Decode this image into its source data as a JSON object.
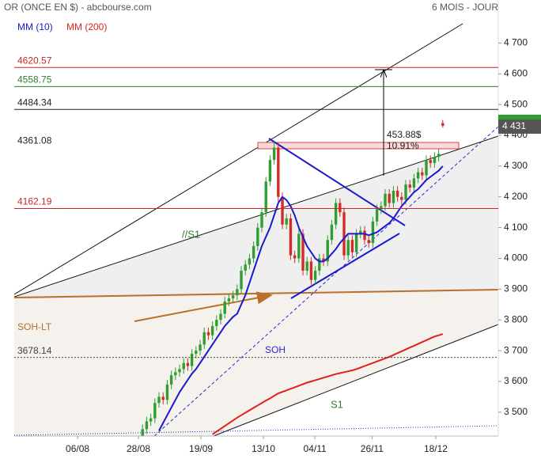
{
  "chart_data": {
    "type": "candlestick",
    "title": "OR (ONCE EN $) - abcbourse.com",
    "subtitle": "6 MOIS - JOUR",
    "ylim": [
      3425,
      4840
    ],
    "yticks": [
      {
        "value": 3500,
        "label": "3 500"
      },
      {
        "value": 3600,
        "label": "3 600"
      },
      {
        "value": 3700,
        "label": "3 700"
      },
      {
        "value": 3800,
        "label": "3 800"
      },
      {
        "value": 3900,
        "label": "3 900"
      },
      {
        "value": 4000,
        "label": "4 000"
      },
      {
        "value": 4100,
        "label": "4 100"
      },
      {
        "value": 4200,
        "label": "4 200"
      },
      {
        "value": 4300,
        "label": "4 300"
      },
      {
        "value": 4400,
        "label": "4 400"
      },
      {
        "value": 4500,
        "label": "4 500"
      },
      {
        "value": 4600,
        "label": "4 600"
      },
      {
        "value": 4700,
        "label": "4 700"
      }
    ],
    "xlim": [
      -31.2,
      86.5
    ],
    "xticks": [
      {
        "value": -15.8,
        "label": "06/08"
      },
      {
        "value": -1,
        "label": "28/08"
      },
      {
        "value": 14.2,
        "label": "19/09"
      },
      {
        "value": 29.4,
        "label": "13/10"
      },
      {
        "value": 41.9,
        "label": "04/11"
      },
      {
        "value": 55.8,
        "label": "26/11"
      },
      {
        "value": 71.3,
        "label": "18/12"
      }
    ],
    "ohlc": {
      "up_color": "#2e9e2e",
      "down_color": "#d42a2a",
      "open": [
        3420,
        3445,
        3470,
        3480,
        3530,
        3550,
        3540,
        3590,
        3620,
        3630,
        3640,
        3660,
        3650,
        3690,
        3700,
        3720,
        3760,
        3750,
        3780,
        3800,
        3820,
        3860,
        3870,
        3880,
        3900,
        3960,
        3980,
        4000,
        4040,
        4100,
        4150,
        4250,
        4320,
        4360,
        4200,
        4110,
        4130,
        4010,
        4000,
        4080,
        3960,
        3990,
        3930,
        3960,
        4000,
        3990,
        4060,
        4110,
        4180,
        4150,
        4010,
        4060,
        4020,
        4080,
        4090,
        4060,
        4050,
        4120,
        4160,
        4170,
        4210,
        4180,
        4220,
        4200,
        4190,
        4240,
        4230,
        4260,
        4280,
        4270,
        4320,
        4310,
        4330,
        4440
      ],
      "high": [
        3460,
        3485,
        3495,
        3545,
        3565,
        3565,
        3605,
        3635,
        3645,
        3655,
        3675,
        3675,
        3705,
        3715,
        3735,
        3775,
        3775,
        3795,
        3815,
        3835,
        3875,
        3885,
        3895,
        3915,
        3975,
        3995,
        4015,
        4055,
        4115,
        4165,
        4265,
        4335,
        4380,
        4375,
        4215,
        4145,
        4145,
        4025,
        4095,
        4095,
        4005,
        4005,
        3975,
        4015,
        4015,
        4075,
        4125,
        4195,
        4195,
        4165,
        4075,
        4075,
        4095,
        4105,
        4105,
        4075,
        4135,
        4175,
        4185,
        4225,
        4225,
        4235,
        4235,
        4215,
        4255,
        4255,
        4275,
        4295,
        4295,
        4335,
        4335,
        4345,
        4355,
        4450
      ],
      "low": [
        3405,
        3430,
        3455,
        3465,
        3515,
        3525,
        3525,
        3575,
        3605,
        3615,
        3625,
        3635,
        3635,
        3675,
        3685,
        3705,
        3735,
        3735,
        3765,
        3785,
        3805,
        3845,
        3855,
        3865,
        3885,
        3945,
        3965,
        3985,
        4025,
        4085,
        4135,
        4235,
        4305,
        4185,
        4095,
        4095,
        3995,
        3985,
        3985,
        3945,
        3945,
        3915,
        3915,
        3945,
        3975,
        3975,
        4045,
        4095,
        4135,
        3995,
        3995,
        4005,
        4005,
        4065,
        4045,
        4035,
        4035,
        4105,
        4145,
        4155,
        4165,
        4165,
        4185,
        4175,
        4175,
        4215,
        4215,
        4245,
        4255,
        4255,
        4295,
        4295,
        4315,
        4425
      ],
      "close": [
        3445,
        3470,
        3480,
        3530,
        3550,
        3540,
        3590,
        3620,
        3630,
        3640,
        3660,
        3650,
        3690,
        3700,
        3720,
        3760,
        3750,
        3780,
        3800,
        3820,
        3860,
        3870,
        3880,
        3900,
        3960,
        3980,
        4000,
        4040,
        4100,
        4150,
        4250,
        4320,
        4360,
        4200,
        4110,
        4130,
        4010,
        4000,
        4080,
        3960,
        3990,
        3930,
        3960,
        4000,
        3990,
        4060,
        4110,
        4180,
        4150,
        4010,
        4060,
        4020,
        4080,
        4090,
        4060,
        4050,
        4120,
        4160,
        4170,
        4210,
        4180,
        4220,
        4200,
        4190,
        4240,
        4230,
        4260,
        4280,
        4270,
        4320,
        4310,
        4330,
        4340,
        4431
      ]
    },
    "series": [
      {
        "name": "MM (10)",
        "color": "#1a1acc",
        "values": [
          null,
          null,
          null,
          null,
          3440,
          3465,
          3490,
          3515,
          3540,
          3565,
          3585,
          3605,
          3625,
          3640,
          3660,
          3680,
          3700,
          3720,
          3740,
          3760,
          3780,
          3795,
          3810,
          3820,
          3850,
          3880,
          3920,
          3960,
          4000,
          4040,
          4070,
          4100,
          4140,
          4180,
          4200,
          4190,
          4170,
          4140,
          4100,
          4070,
          4040,
          4020,
          4000,
          3990,
          3990,
          4000,
          4015,
          4030,
          4050,
          4065,
          4080,
          4080,
          4080,
          4080,
          4080,
          4075,
          4080,
          4085,
          4095,
          4105,
          4115,
          4130,
          4150,
          4170,
          4185,
          4200,
          4215,
          4225,
          4240,
          4255,
          4265,
          4275,
          4285,
          4300
        ]
      },
      {
        "name": "MM (200)",
        "color": "#e02020",
        "values": [
          null,
          null,
          null,
          null,
          null,
          null,
          null,
          null,
          null,
          null,
          null,
          null,
          null,
          null,
          null,
          null,
          null,
          3428,
          3437,
          3446,
          3455,
          3464,
          3473,
          3482,
          3490,
          3498,
          3506,
          3514,
          3522,
          3530,
          3538,
          3545,
          3553,
          3561,
          3566,
          3571,
          3576,
          3581,
          3586,
          3591,
          3596,
          3600,
          3604,
          3608,
          3612,
          3616,
          3620,
          3624,
          3627,
          3630,
          3633,
          3636,
          3640,
          3645,
          3650,
          3655,
          3660,
          3665,
          3670,
          3675,
          3680,
          3686,
          3692,
          3698,
          3704,
          3710,
          3716,
          3722,
          3728,
          3734,
          3740,
          3746,
          3750,
          3754
        ]
      }
    ],
    "levels": [
      {
        "value": 4620.57,
        "color": "#c62828",
        "style": "solid"
      },
      {
        "value": 4558.75,
        "color": "#2e7d32",
        "style": "solid"
      },
      {
        "value": 4484.34,
        "color": "#222222",
        "style": "solid"
      },
      {
        "value": 4361.08,
        "color": "#222222",
        "style": "none"
      },
      {
        "value": 4162.19,
        "color": "#c62828",
        "style": "solid"
      },
      {
        "value": 3678.14,
        "color": "#444444",
        "style": "dotted"
      }
    ],
    "last_price": {
      "value": 4431,
      "label": "4 431"
    },
    "annotations": {
      "s1_upper": "//S1",
      "soh_lt": "SOH-LT",
      "soh": "SOH",
      "s1": "S1",
      "gain": "453.88$",
      "gain_pct": "10.91%"
    }
  }
}
